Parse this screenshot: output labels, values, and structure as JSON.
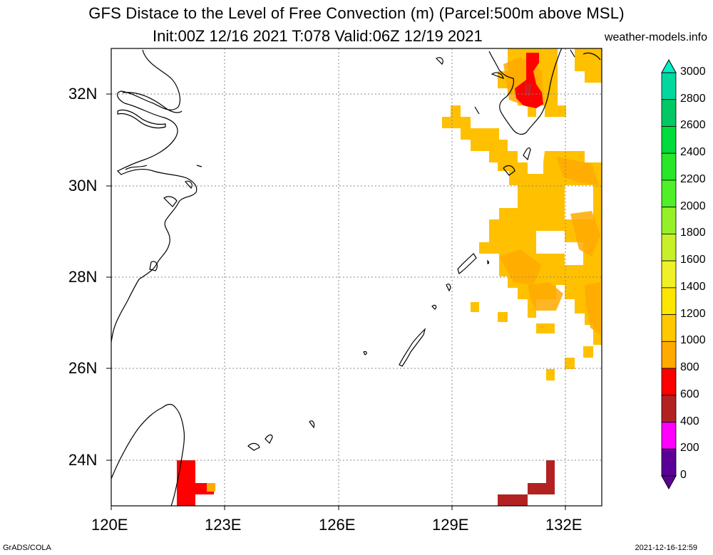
{
  "header": {
    "title": "GFS Distace to the Level of Free Convection (m) (Parcel:500m above MSL)",
    "subtitle": "Init:00Z 12/16 2021 T:078 Valid:06Z 12/19 2021",
    "source": "weather-models.info"
  },
  "axes": {
    "lat_labels": [
      "32N",
      "30N",
      "28N",
      "26N",
      "24N"
    ],
    "lon_labels": [
      "120E",
      "123E",
      "126E",
      "129E",
      "132E"
    ]
  },
  "colorbar": {
    "labels": [
      "3000",
      "2800",
      "2600",
      "2400",
      "2200",
      "2000",
      "1800",
      "1600",
      "1400",
      "1200",
      "1000",
      "800",
      "600",
      "400",
      "200",
      "0"
    ],
    "colors": [
      "#00f0c8",
      "#00d8a0",
      "#00c864",
      "#00dc3c",
      "#28e628",
      "#50f028",
      "#96f028",
      "#c8f028",
      "#f0f028",
      "#ffe600",
      "#ffc800",
      "#ffaa00",
      "#ff0000",
      "#b22222",
      "#ff00ff",
      "#5a0096"
    ]
  },
  "footer": {
    "left": "GrADS/COLA",
    "right": "2021-12-16-12:59"
  }
}
